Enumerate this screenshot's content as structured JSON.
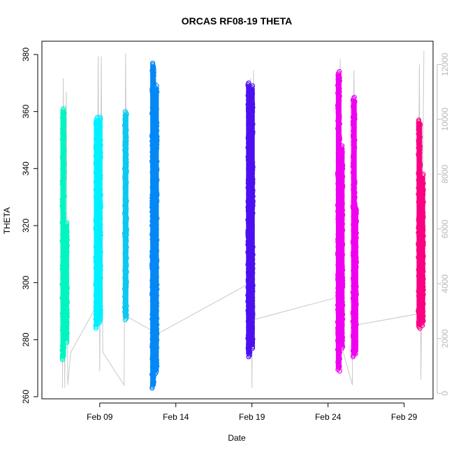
{
  "chart_data": {
    "type": "scatter",
    "title": "ORCAS RF08-19 THETA",
    "xlabel": "Date",
    "ylabel": "THETA",
    "x_ticks": [
      "Feb 09",
      "Feb 14",
      "Feb 19",
      "Feb 24",
      "Feb 29"
    ],
    "x_tick_days": [
      9,
      14,
      19,
      24,
      29
    ],
    "xlim": [
      5.2,
      30.9
    ],
    "ylim": [
      260,
      380
    ],
    "y_ticks": [
      260,
      280,
      300,
      320,
      340,
      360,
      380
    ],
    "y2_ticks": [
      0,
      2000,
      4000,
      6000,
      8000,
      10000,
      12000
    ],
    "y2lim": [
      -200,
      12850
    ],
    "y2_color": "#bdbdbd",
    "grid": false,
    "legend": "none",
    "series": [
      {
        "color": "#00f5c0",
        "segments": [
          {
            "day": 6.6,
            "min": 273,
            "max": 361
          },
          {
            "day": 6.8,
            "min": 279,
            "max": 321
          }
        ]
      },
      {
        "color": "#00f0ff",
        "segments": [
          {
            "day": 8.8,
            "min": 284,
            "max": 358
          },
          {
            "day": 9.0,
            "min": 286,
            "max": 358
          }
        ]
      },
      {
        "color": "#0ec8f0",
        "segments": [
          {
            "day": 10.7,
            "min": 287,
            "max": 360
          }
        ]
      },
      {
        "color": "#0488f5",
        "segments": [
          {
            "day": 12.5,
            "min": 263,
            "max": 377
          },
          {
            "day": 12.7,
            "min": 268,
            "max": 369
          }
        ]
      },
      {
        "color": "#4c10f0",
        "segments": [
          {
            "day": 18.8,
            "min": 274,
            "max": 370
          },
          {
            "day": 19.0,
            "min": 277,
            "max": 369
          }
        ]
      },
      {
        "color": "#f000f0",
        "segments": [
          {
            "day": 24.7,
            "min": 269,
            "max": 374
          },
          {
            "day": 24.9,
            "min": 277,
            "max": 348
          },
          {
            "day": 25.7,
            "min": 274,
            "max": 365
          },
          {
            "day": 25.8,
            "min": 275,
            "max": 327
          }
        ]
      },
      {
        "color": "#fa0082",
        "segments": [
          {
            "day": 30.0,
            "min": 284,
            "max": 357
          },
          {
            "day": 30.2,
            "min": 285,
            "max": 338
          }
        ]
      }
    ],
    "altitude_series": {
      "color": "#c8c8c8",
      "points": [
        [
          6.55,
          180
        ],
        [
          6.6,
          11500
        ],
        [
          6.7,
          200
        ],
        [
          6.8,
          11000
        ],
        [
          6.9,
          300
        ],
        [
          7.1,
          1500
        ],
        [
          8.8,
          3200
        ],
        [
          8.9,
          12300
        ],
        [
          9.0,
          800
        ],
        [
          9.1,
          12300
        ],
        [
          9.2,
          1500
        ],
        [
          10.6,
          300
        ],
        [
          10.7,
          12400
        ],
        [
          10.8,
          2800
        ],
        [
          12.4,
          2300
        ],
        [
          12.6,
          12000
        ],
        [
          12.8,
          1500
        ],
        [
          12.9,
          2200
        ],
        [
          18.8,
          4000
        ],
        [
          18.9,
          11500
        ],
        [
          19.0,
          200
        ],
        [
          19.1,
          11800
        ],
        [
          19.2,
          2700
        ],
        [
          24.6,
          3500
        ],
        [
          24.8,
          12200
        ],
        [
          25.0,
          1500
        ],
        [
          25.6,
          300
        ],
        [
          25.7,
          11800
        ],
        [
          25.9,
          2500
        ],
        [
          29.9,
          2900
        ],
        [
          30.0,
          12000
        ],
        [
          30.1,
          500
        ],
        [
          30.3,
          12500
        ]
      ]
    }
  }
}
